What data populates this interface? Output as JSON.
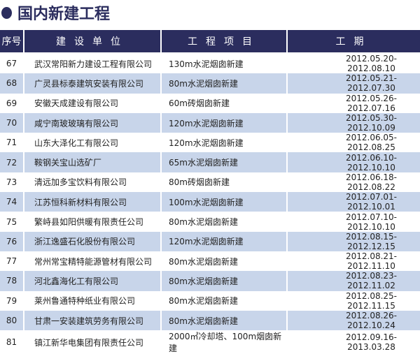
{
  "title": "国内新建工程",
  "headers": [
    "序号",
    "建设单位",
    "工程项目",
    "工期"
  ],
  "rows": [
    [
      "67",
      "武汉常阳新力建设工程有限公司",
      "130m水泥烟囱新建",
      "2012.05.20-2012.08.10"
    ],
    [
      "68",
      "广灵县标泰建筑安装有限公司",
      "80m水泥烟囱新建",
      "2012.05.21-2012.07.30"
    ],
    [
      "69",
      "安徽天成建设有限公司",
      "60m砖烟囱新建",
      "2012.05.26-2012.07.16"
    ],
    [
      "70",
      "咸宁南玻玻璃有限公司",
      "120m水泥烟囱新建",
      "2012.05.30-2012.10.09"
    ],
    [
      "71",
      "山东大泽化工有限公司",
      "120m水泥烟囱新建",
      "2012.06.05-2012.08.25"
    ],
    [
      "72",
      "鞍钢关宝山选矿厂",
      "65m水泥烟囱新建",
      "2012.06.10-2012.10.10"
    ],
    [
      "73",
      "清远加多宝饮料有限公司",
      "80m砖烟囱新建",
      "2012.06.18-2012.08.22"
    ],
    [
      "74",
      "江苏恒科新材料有限公司",
      "100m水泥烟囱新建",
      "2012.07.01-2012.10.01"
    ],
    [
      "75",
      "繁峙县如阳供暖有限责任公司",
      "80m水泥烟囱新建",
      "2012.07.10-2012.10.10"
    ],
    [
      "76",
      "浙江逸盛石化股份有限公司",
      "120m水泥烟囱新建",
      "2012.08.15-2012.12.15"
    ],
    [
      "77",
      "常州常宝精特能源管材有限公司",
      "80m水泥烟囱新建",
      "2012.08.21-2012.11.10"
    ],
    [
      "78",
      "河北鑫海化工有限公司",
      "80m水泥烟囱新建",
      "2012.08.23-2012.11.02"
    ],
    [
      "79",
      "莱州鲁通特种纸业有限公司",
      "80m水泥烟囱新建",
      "2012.08.25-2012.11.15"
    ],
    [
      "80",
      "甘肃一安装建筑劳务有限公司",
      "80m水泥烟囱新建",
      "2012.08.26-2012.10.24"
    ],
    [
      "81",
      "镇江新华电集团有限责任公司",
      "2000㎡冷却塔、100m烟囱新建",
      "2012.09.16-2013.03.28"
    ]
  ],
  "colors": {
    "header": "#2b2d5e",
    "alt_row": "#c8d5ea"
  }
}
